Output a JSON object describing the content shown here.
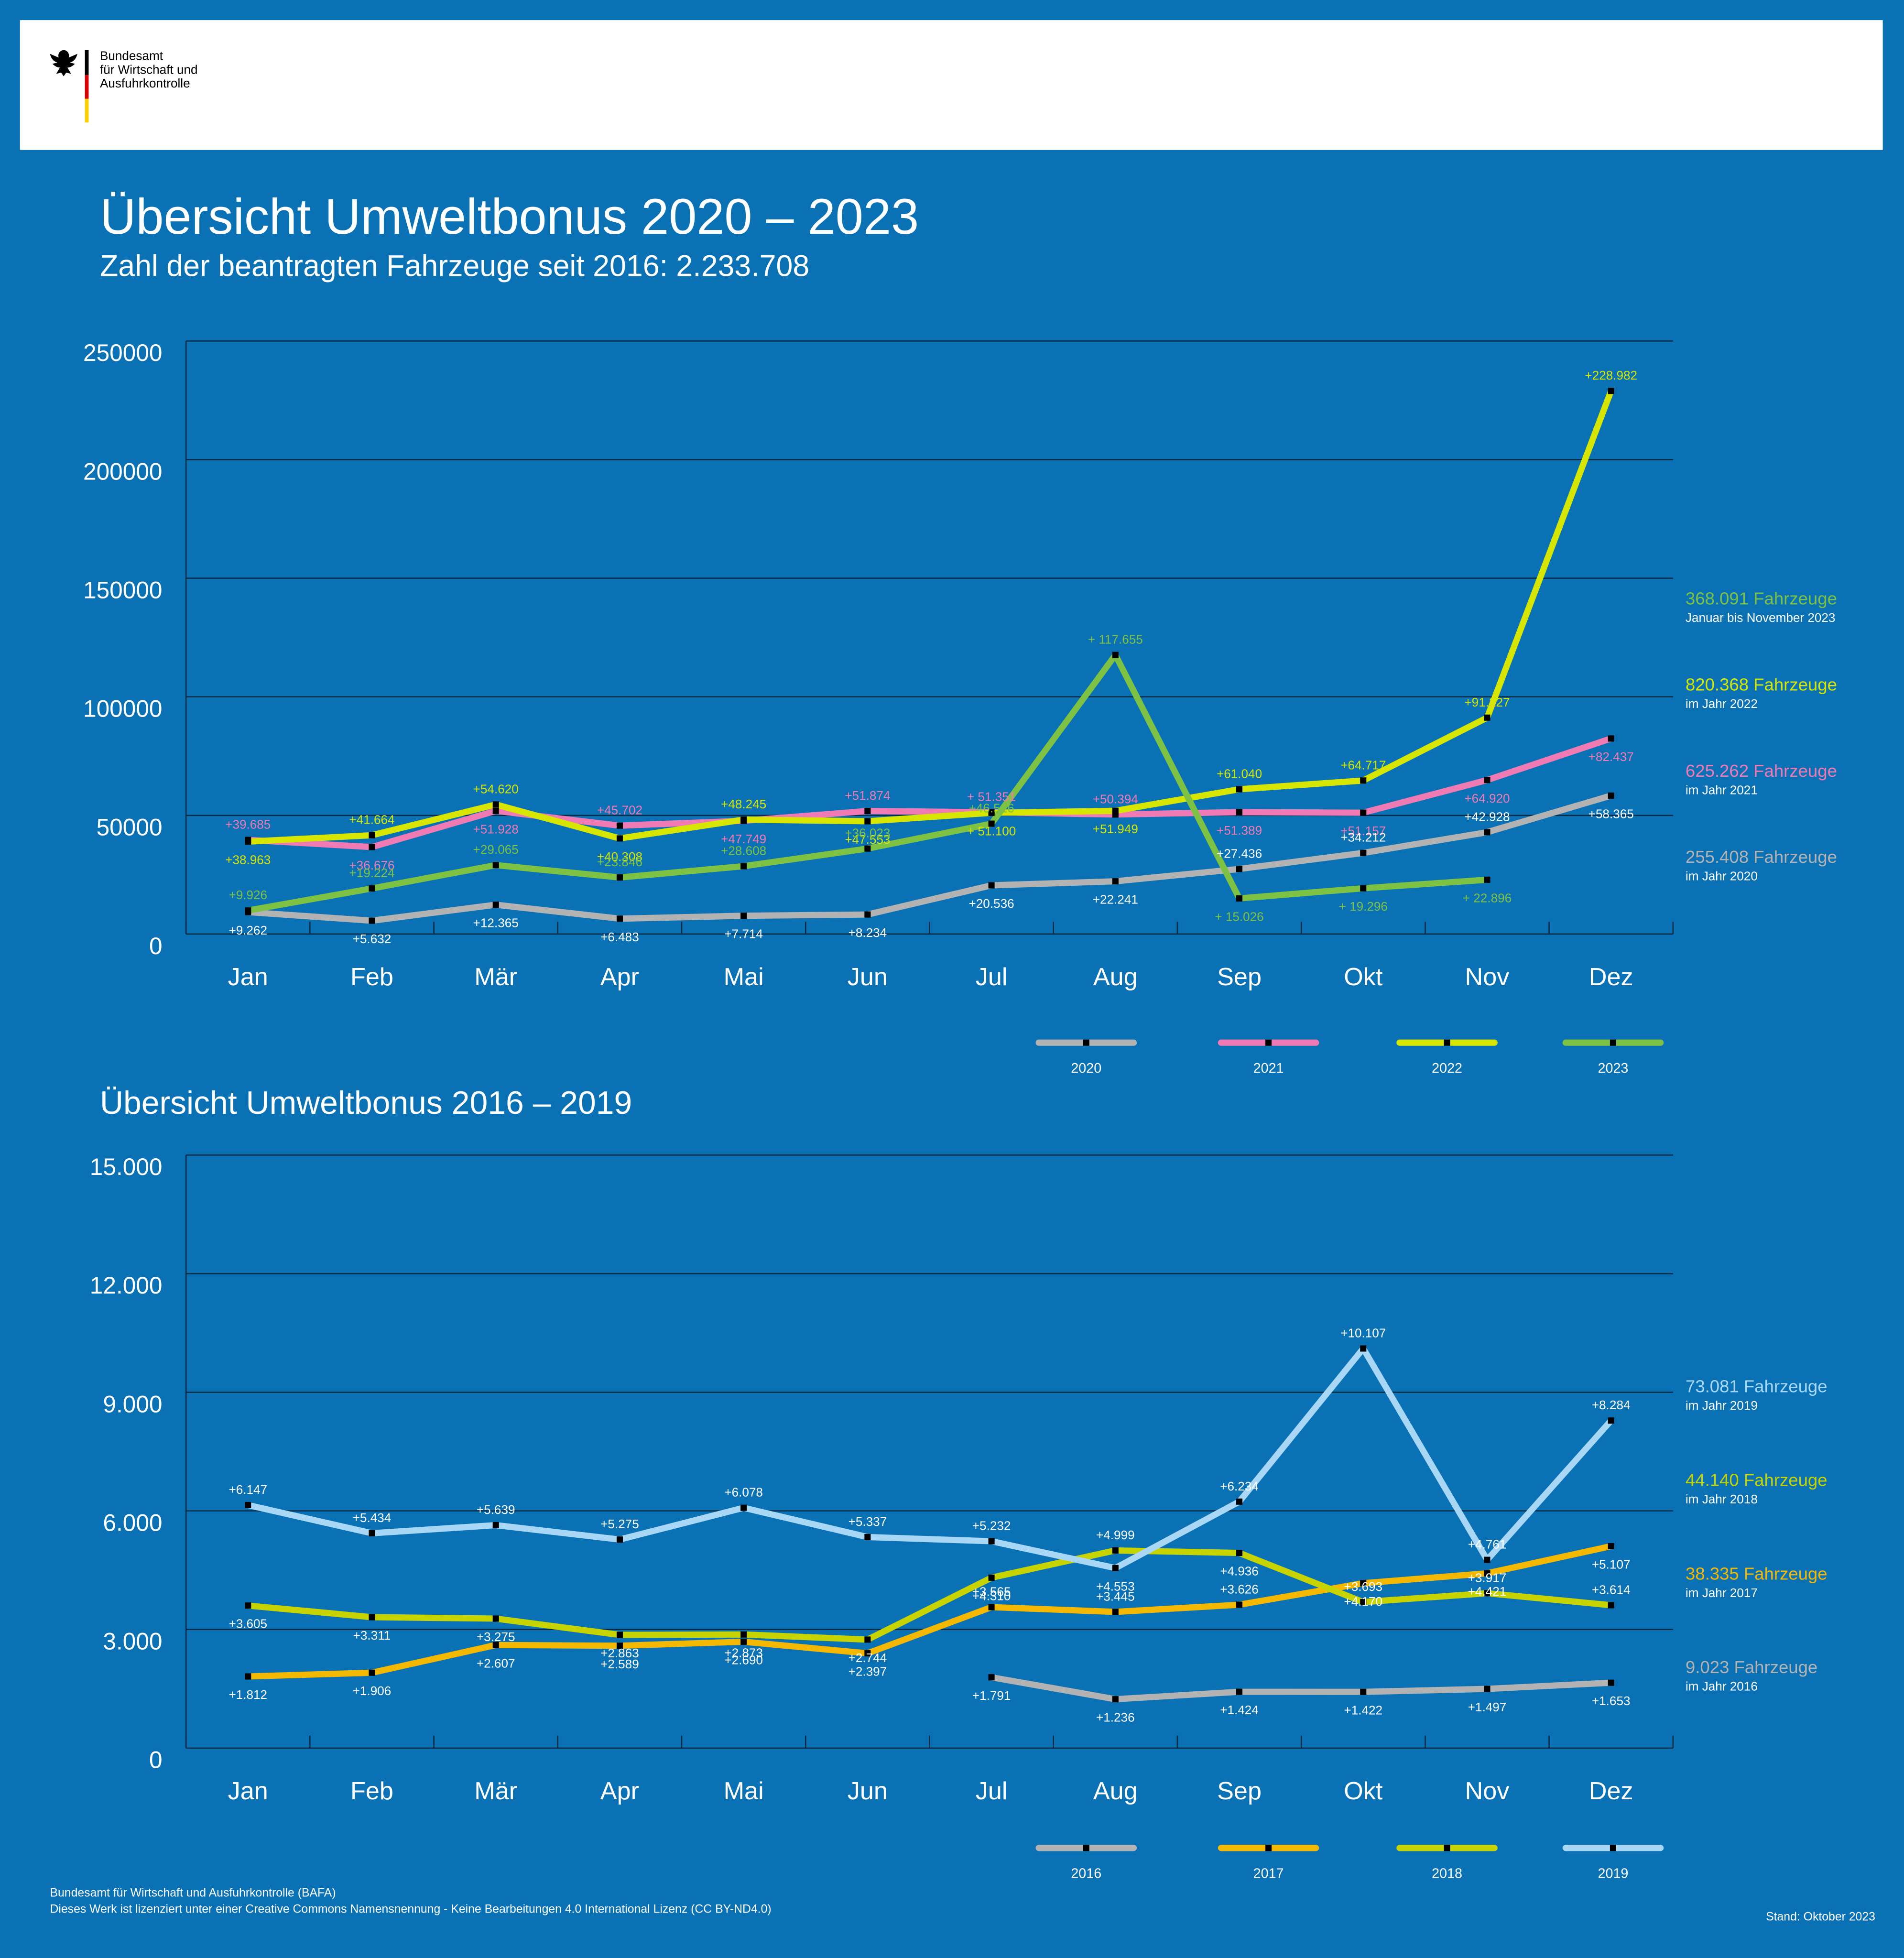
{
  "header": {
    "logo_lines": [
      "Bundesamt",
      "für Wirtschaft und",
      "Ausfuhrkontrolle"
    ]
  },
  "footer": {
    "lines": [
      "Bundesamt für Wirtschaft und Ausfuhrkontrolle (BAFA)",
      "Dieses Werk ist lizenziert unter einer Creative Commons Namensnennung - Keine Bearbeitungen 4.0 International Lizenz (CC BY-ND4.0)"
    ],
    "date": "Stand: Oktober 2023"
  },
  "chart_data": [
    {
      "type": "line",
      "title": "Übersicht Umweltbonus 2020 – 2023",
      "subtitle": "Zahl der beantragten Fahrzeuge seit 2016: 2.233.708",
      "categories": [
        "Jan",
        "Feb",
        "Mär",
        "Apr",
        "Mai",
        "Jun",
        "Jul",
        "Aug",
        "Sep",
        "Okt",
        "Nov",
        "Dez"
      ],
      "ylim": [
        0,
        250000
      ],
      "yticks": [
        0,
        50000,
        100000,
        150000,
        200000,
        250000
      ],
      "grid": true,
      "series": [
        {
          "name": "2020",
          "color": "#b3b3b3",
          "label_color": "#ffffff",
          "values": [
            9262,
            5632,
            12365,
            6483,
            7714,
            8234,
            20536,
            22241,
            27436,
            34212,
            42928,
            58365
          ],
          "value_labels": [
            "+9.262",
            "+5.632",
            "+12.365",
            "+6.483",
            "+7.714",
            "+8.234",
            "+20.536",
            "+22.241",
            "+27.436",
            "+34.212",
            "+42.928",
            "+58.365"
          ]
        },
        {
          "name": "2021",
          "color": "#f07ab4",
          "values": [
            39685,
            36676,
            51928,
            45702,
            47749,
            51874,
            51351,
            50394,
            51389,
            51157,
            64920,
            82437
          ],
          "value_labels": [
            "+39.685",
            "+36.676",
            "+51.928",
            "+45.702",
            "+47.749",
            "+51.874",
            "+ 51.351",
            "+50.394",
            "+51.389",
            "+51.157",
            "+64.920",
            "+82.437"
          ]
        },
        {
          "name": "2022",
          "color": "#d6e600",
          "values": [
            38963,
            41664,
            54620,
            40308,
            48245,
            47553,
            51100,
            51949,
            61040,
            64717,
            91227,
            228982
          ],
          "value_labels": [
            "+38.963",
            "+41.664",
            "+54.620",
            "+40.308",
            "+48.245",
            "+47.553",
            "+ 51.100",
            "+51.949",
            "+61.040",
            "+64.717",
            "+91.227",
            "+228.982"
          ]
        },
        {
          "name": "2023",
          "color": "#7dc242",
          "values": [
            9926,
            19224,
            29065,
            23846,
            28608,
            36023,
            46526,
            117655,
            15026,
            19296,
            22896,
            null
          ],
          "value_labels": [
            "+9.926",
            "+19.224",
            "+29.065",
            "+23.846",
            "+28.608",
            "+36.023",
            "+46.526",
            "+ 117.655",
            "+ 15.026",
            "+ 19.296",
            "+ 22.896",
            null
          ]
        }
      ],
      "annotations": [
        {
          "text": "368.091 Fahrzeuge",
          "subtext": "Januar bis November 2023",
          "color": "#7dc242"
        },
        {
          "text": "820.368 Fahrzeuge",
          "subtext": "im Jahr 2022",
          "color": "#d6e600"
        },
        {
          "text": "625.262 Fahrzeuge",
          "subtext": "im Jahr 2021",
          "color": "#f07ab4"
        },
        {
          "text": "255.408 Fahrzeuge",
          "subtext": "im Jahr 2020",
          "color": "#b3b3b3"
        }
      ]
    },
    {
      "type": "line",
      "title": "Übersicht Umweltbonus 2016 – 2019",
      "categories": [
        "Jan",
        "Feb",
        "Mär",
        "Apr",
        "Mai",
        "Jun",
        "Jul",
        "Aug",
        "Sep",
        "Okt",
        "Nov",
        "Dez"
      ],
      "ylim": [
        0,
        15000
      ],
      "yticks": [
        0,
        {
          "value": 3000,
          "label": "3.000"
        },
        {
          "value": 6000,
          "label": "6.000"
        },
        {
          "value": 9000,
          "label": "9.000"
        },
        {
          "value": 12000,
          "label": "12.000"
        },
        {
          "value": 15000,
          "label": "15.000"
        }
      ],
      "grid": true,
      "label_color": "#ffffff",
      "series": [
        {
          "name": "2016",
          "color": "#b3b3b3",
          "values": [
            null,
            null,
            null,
            null,
            null,
            null,
            1791,
            1236,
            1424,
            1422,
            1497,
            1653
          ],
          "value_labels": [
            null,
            null,
            null,
            null,
            null,
            null,
            "+1.791",
            "+1.236",
            "+1.424",
            "+1.422",
            "+1.497",
            "+1.653"
          ]
        },
        {
          "name": "2017",
          "color": "#f5b800",
          "values": [
            1812,
            1906,
            2607,
            2589,
            2690,
            2397,
            3565,
            3445,
            3626,
            4170,
            4421,
            5107
          ],
          "value_labels": [
            "+1.812",
            "+1.906",
            "+2.607",
            "+2.589",
            "+2.690",
            "+2.397",
            "+3.565",
            "+3.445",
            "+3.626",
            "+4.170",
            "+4.421",
            "+5.107"
          ]
        },
        {
          "name": "2018",
          "color": "#c8d400",
          "values": [
            3605,
            3311,
            3275,
            2863,
            2873,
            2744,
            4310,
            4999,
            4936,
            3693,
            3917,
            3614
          ],
          "value_labels": [
            "+3.605",
            "+3.311",
            "+3.275",
            "+2.863",
            "+2.873",
            "+2.744",
            "+4.310",
            "+4.999",
            "+4.936",
            "+3.693",
            "+3.917",
            "+3.614"
          ]
        },
        {
          "name": "2019",
          "color": "#a8d8f5",
          "values": [
            6147,
            5434,
            5639,
            5275,
            6078,
            5337,
            5232,
            4553,
            6234,
            10107,
            4761,
            8284
          ],
          "value_labels": [
            "+6.147",
            "+5.434",
            "+5.639",
            "+5.275",
            "+6.078",
            "+5.337",
            "+5.232",
            "+4.553",
            "+6.234",
            "+10.107",
            "+4.761",
            "+8.284"
          ]
        }
      ],
      "annotations": [
        {
          "text": "73.081 Fahrzeuge",
          "subtext": "im Jahr 2019",
          "color": "#a8d8f5"
        },
        {
          "text": "44.140 Fahrzeuge",
          "subtext": "im Jahr 2018",
          "color": "#c8d400"
        },
        {
          "text": "38.335 Fahrzeuge",
          "subtext": "im Jahr 2017",
          "color": "#f5b800"
        },
        {
          "text": "9.023 Fahrzeuge",
          "subtext": "im Jahr 2016",
          "color": "#b3b3b3"
        }
      ]
    }
  ]
}
